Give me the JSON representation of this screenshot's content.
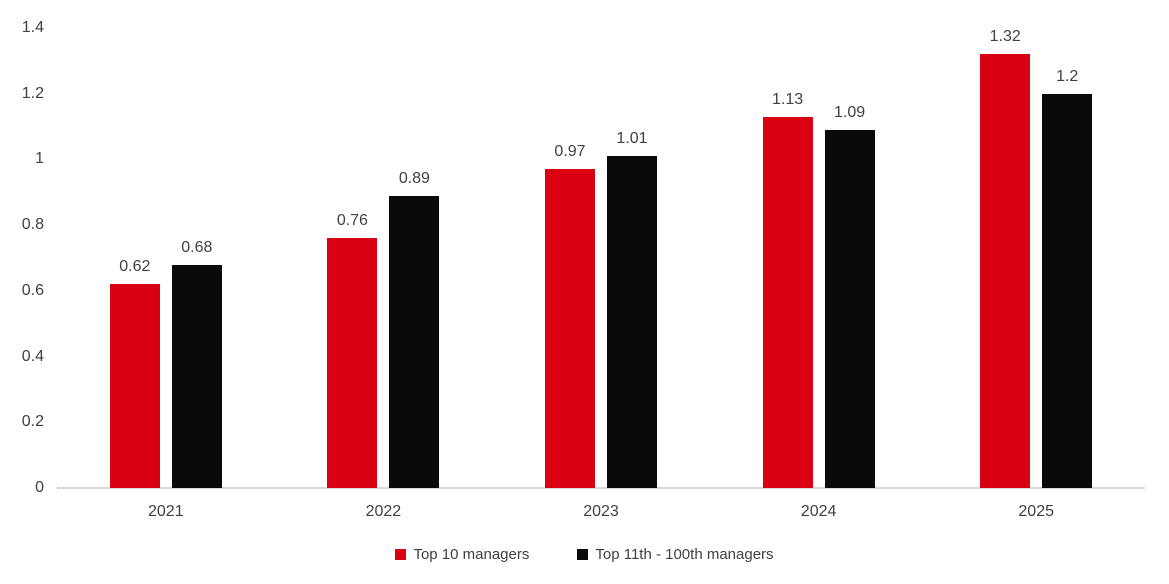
{
  "chart_data": {
    "type": "bar",
    "title": "",
    "xlabel": "",
    "ylabel": "",
    "categories": [
      "2021",
      "2022",
      "2023",
      "2024",
      "2025"
    ],
    "series": [
      {
        "name": "Top 10 managers",
        "color": "#da0013",
        "values": [
          0.62,
          0.76,
          0.97,
          1.13,
          1.32
        ]
      },
      {
        "name": "Top 11th - 100th managers",
        "color": "#0a0a0a",
        "values": [
          0.68,
          0.89,
          1.01,
          1.09,
          1.2
        ]
      }
    ],
    "data_labels": [
      [
        "0.62",
        "0.76",
        "0.97",
        "1.13",
        "1.32"
      ],
      [
        "0.68",
        "0.89",
        "1.01",
        "1.09",
        "1.2"
      ]
    ],
    "ylim": [
      0,
      1.4
    ],
    "yticks": [
      "1.4",
      "1.2",
      "1",
      "0.8",
      "0.6",
      "0.4",
      "0.2",
      "0"
    ],
    "ytick_values": [
      1.4,
      1.2,
      1,
      0.8,
      0.6,
      0.4,
      0.2,
      0
    ],
    "grid": false,
    "legend_position": "bottom"
  },
  "colors": {
    "background": "#ffffff",
    "axis_line": "#d9d9d9",
    "text": "#404040",
    "series_red": "#da0013",
    "series_black": "#0a0a0a"
  }
}
